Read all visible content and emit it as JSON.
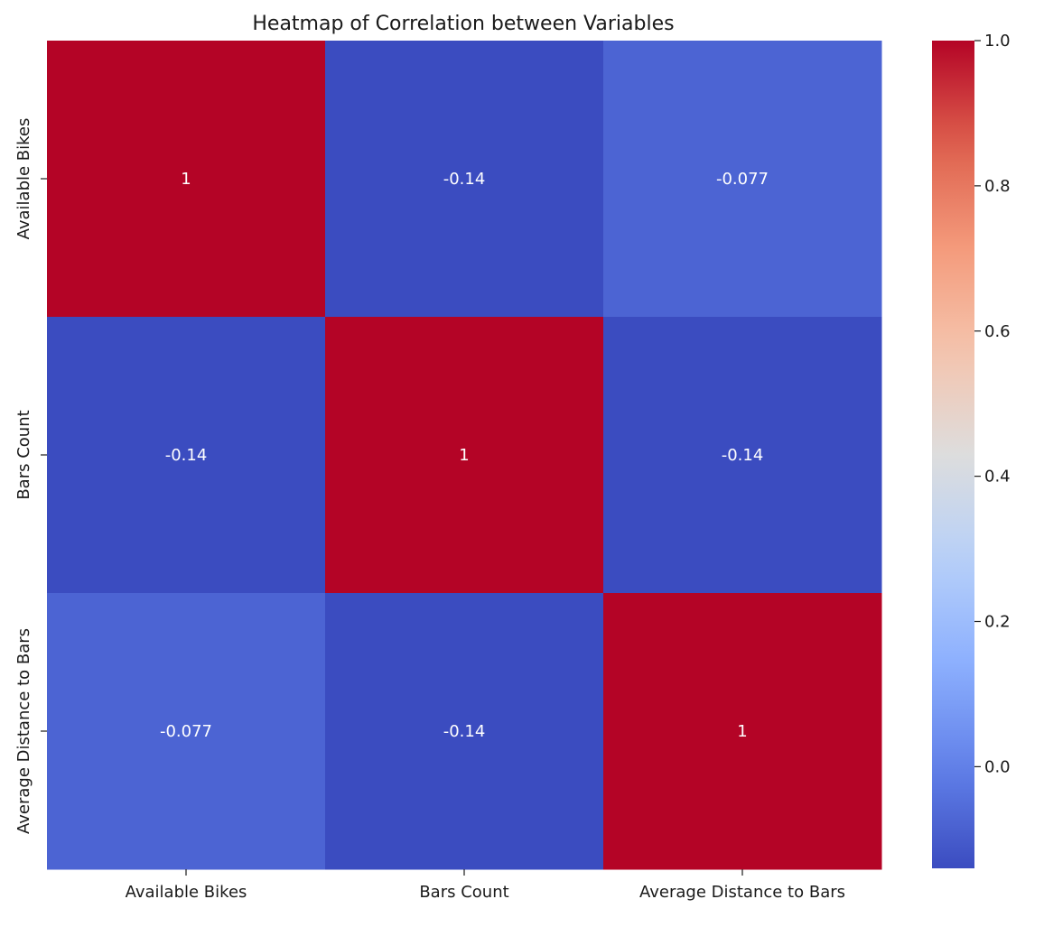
{
  "chart_data": {
    "type": "heatmap",
    "title": "Heatmap of Correlation between Variables",
    "x_labels": [
      "Available Bikes",
      "Bars Count",
      "Average Distance to Bars"
    ],
    "y_labels": [
      "Available Bikes",
      "Bars Count",
      "Average Distance to Bars"
    ],
    "values": [
      [
        1,
        -0.14,
        -0.077
      ],
      [
        -0.14,
        1,
        -0.14
      ],
      [
        -0.077,
        -0.14,
        1
      ]
    ],
    "cell_labels": [
      [
        "1",
        "-0.14",
        "-0.077"
      ],
      [
        "-0.14",
        "1",
        "-0.14"
      ],
      [
        "-0.077",
        "-0.14",
        "1"
      ]
    ],
    "colormap": "coolwarm",
    "color_range": [
      -0.14,
      1.0
    ],
    "colorbar_ticks": [
      0.0,
      0.2,
      0.4,
      0.6,
      0.8,
      1.0
    ],
    "colorbar_tick_labels": [
      "0.0",
      "0.2",
      "0.4",
      "0.6",
      "0.8",
      "1.0"
    ],
    "colorbar_placement": "right",
    "grid": false
  }
}
